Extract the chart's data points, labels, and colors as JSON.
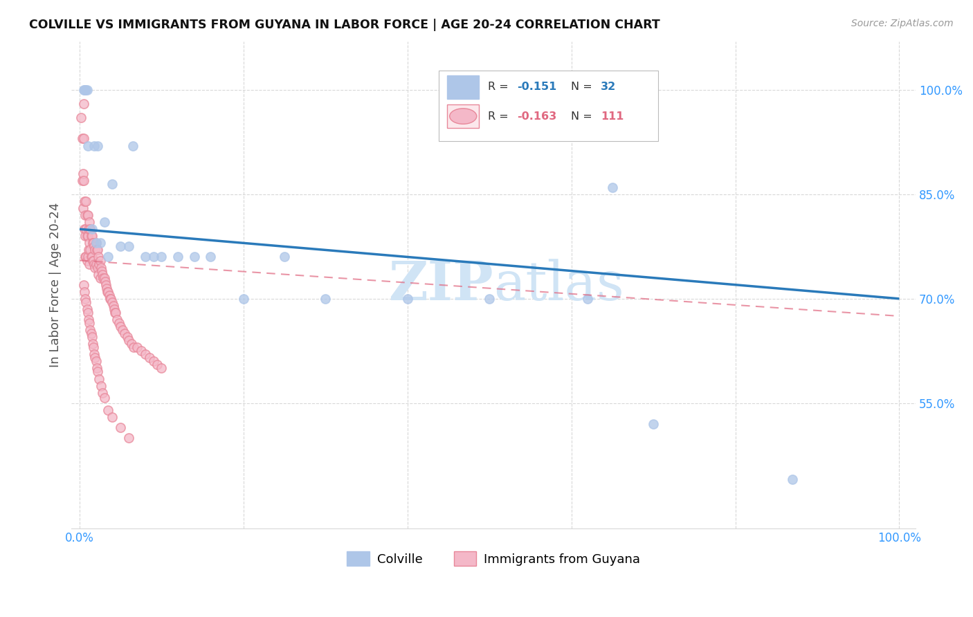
{
  "title": "COLVILLE VS IMMIGRANTS FROM GUYANA IN LABOR FORCE | AGE 20-24 CORRELATION CHART",
  "source": "Source: ZipAtlas.com",
  "ylabel": "In Labor Force | Age 20-24",
  "colville_R": -0.151,
  "colville_N": 32,
  "guyana_R": -0.163,
  "guyana_N": 111,
  "colville_color": "#aec6e8",
  "colville_edge_color": "#aec6e8",
  "colville_line_color": "#2a7aba",
  "guyana_color": "#f4b8c8",
  "guyana_edge_color": "#e8889a",
  "guyana_line_color": "#e06880",
  "watermark_color": "#d0e4f5",
  "legend_box_color": "#f0f0f0",
  "grid_color": "#d8d8d8",
  "tick_color": "#3399ff",
  "ylabel_color": "#555555",
  "title_color": "#111111",
  "source_color": "#999999",
  "colville_x": [
    0.005,
    0.006,
    0.007,
    0.008,
    0.009,
    0.01,
    0.015,
    0.018,
    0.02,
    0.022,
    0.025,
    0.03,
    0.035,
    0.04,
    0.05,
    0.06,
    0.065,
    0.08,
    0.09,
    0.1,
    0.12,
    0.14,
    0.16,
    0.2,
    0.25,
    0.3,
    0.4,
    0.5,
    0.62,
    0.65,
    0.7,
    0.87
  ],
  "colville_y": [
    1.0,
    1.0,
    1.0,
    1.0,
    1.0,
    0.92,
    0.8,
    0.92,
    0.78,
    0.92,
    0.78,
    0.81,
    0.76,
    0.865,
    0.775,
    0.775,
    0.92,
    0.76,
    0.76,
    0.76,
    0.76,
    0.76,
    0.76,
    0.7,
    0.76,
    0.7,
    0.7,
    0.7,
    0.7,
    0.86,
    0.52,
    0.44
  ],
  "guyana_x": [
    0.002,
    0.003,
    0.003,
    0.004,
    0.004,
    0.005,
    0.005,
    0.005,
    0.006,
    0.006,
    0.007,
    0.007,
    0.007,
    0.008,
    0.008,
    0.008,
    0.009,
    0.009,
    0.009,
    0.01,
    0.01,
    0.01,
    0.011,
    0.011,
    0.012,
    0.012,
    0.012,
    0.013,
    0.013,
    0.014,
    0.014,
    0.015,
    0.015,
    0.016,
    0.016,
    0.017,
    0.017,
    0.018,
    0.018,
    0.019,
    0.019,
    0.02,
    0.02,
    0.021,
    0.022,
    0.022,
    0.023,
    0.023,
    0.024,
    0.025,
    0.025,
    0.026,
    0.027,
    0.028,
    0.029,
    0.03,
    0.031,
    0.032,
    0.033,
    0.034,
    0.035,
    0.036,
    0.037,
    0.038,
    0.04,
    0.041,
    0.042,
    0.043,
    0.044,
    0.046,
    0.048,
    0.05,
    0.052,
    0.055,
    0.058,
    0.06,
    0.063,
    0.066,
    0.07,
    0.075,
    0.08,
    0.085,
    0.09,
    0.095,
    0.1,
    0.005,
    0.006,
    0.007,
    0.008,
    0.009,
    0.01,
    0.011,
    0.012,
    0.013,
    0.014,
    0.015,
    0.016,
    0.017,
    0.018,
    0.019,
    0.02,
    0.021,
    0.022,
    0.024,
    0.026,
    0.028,
    0.03,
    0.035,
    0.04,
    0.05,
    0.06
  ],
  "guyana_y": [
    0.96,
    0.93,
    0.87,
    0.88,
    0.83,
    0.98,
    0.93,
    0.87,
    0.84,
    0.8,
    0.82,
    0.79,
    0.76,
    0.84,
    0.8,
    0.76,
    0.82,
    0.79,
    0.755,
    0.82,
    0.79,
    0.76,
    0.8,
    0.77,
    0.81,
    0.78,
    0.75,
    0.8,
    0.77,
    0.79,
    0.76,
    0.79,
    0.76,
    0.78,
    0.755,
    0.78,
    0.755,
    0.775,
    0.75,
    0.77,
    0.745,
    0.78,
    0.75,
    0.77,
    0.77,
    0.745,
    0.76,
    0.735,
    0.75,
    0.755,
    0.73,
    0.745,
    0.74,
    0.735,
    0.73,
    0.73,
    0.725,
    0.72,
    0.715,
    0.71,
    0.71,
    0.705,
    0.7,
    0.7,
    0.695,
    0.69,
    0.685,
    0.68,
    0.68,
    0.67,
    0.665,
    0.66,
    0.655,
    0.65,
    0.645,
    0.64,
    0.635,
    0.63,
    0.63,
    0.625,
    0.62,
    0.615,
    0.61,
    0.605,
    0.6,
    0.72,
    0.71,
    0.7,
    0.695,
    0.685,
    0.68,
    0.67,
    0.665,
    0.655,
    0.65,
    0.645,
    0.635,
    0.63,
    0.62,
    0.615,
    0.61,
    0.6,
    0.595,
    0.585,
    0.575,
    0.565,
    0.558,
    0.54,
    0.53,
    0.515,
    0.5
  ],
  "colville_line_x": [
    0.0,
    1.0
  ],
  "colville_line_y": [
    0.8,
    0.7
  ],
  "guyana_line_x": [
    0.0,
    1.0
  ],
  "guyana_line_y": [
    0.755,
    0.675
  ],
  "xlim": [
    -0.01,
    1.02
  ],
  "ylim": [
    0.37,
    1.07
  ],
  "yticks": [
    0.55,
    0.7,
    0.85,
    1.0
  ],
  "ytick_labels": [
    "55.0%",
    "70.0%",
    "85.0%",
    "100.0%"
  ],
  "xticks": [
    0.0,
    0.2,
    0.4,
    0.6,
    0.8,
    1.0
  ],
  "xtick_labels": [
    "0.0%",
    "",
    "",
    "",
    "",
    "100.0%"
  ]
}
